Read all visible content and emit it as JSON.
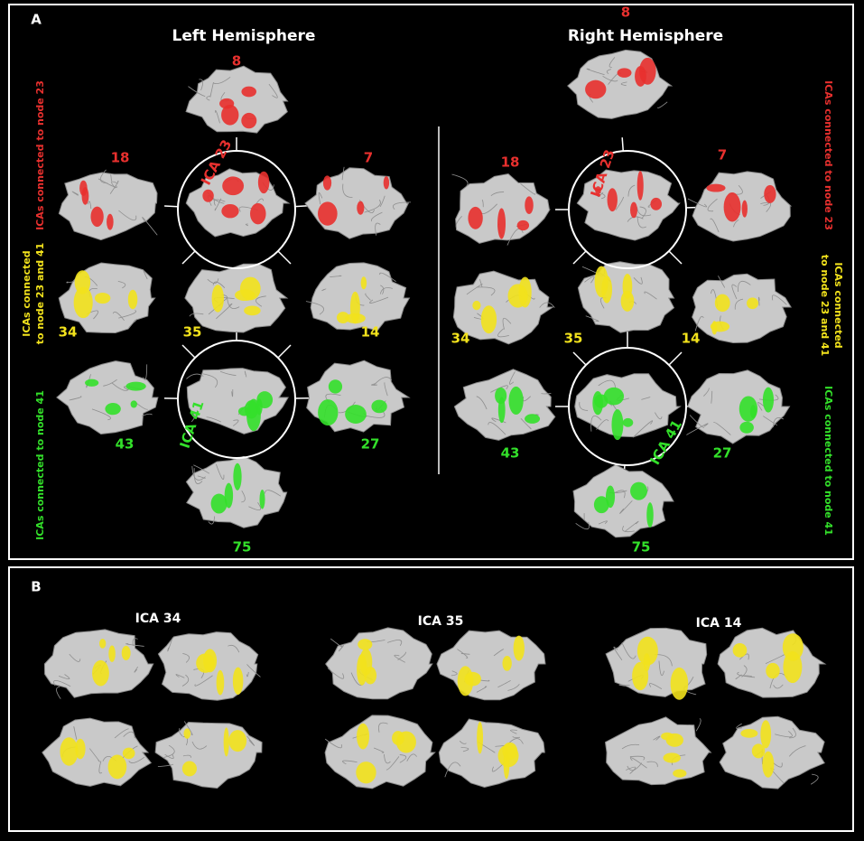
{
  "panel_a": {
    "label": "A",
    "side_labels": {
      "node_23": "ICAs connected to node 23",
      "node_23_41": [
        "ICAs connected",
        "to node 23 and 41"
      ],
      "node_41": "ICAs connected to node 41"
    },
    "hemispheres": [
      {
        "title": "Left Hemisphere",
        "hub_23": "ICA 23",
        "hub_41": "ICA 41",
        "red": [
          "8",
          "18",
          "7"
        ],
        "yellow": [
          "34",
          "35",
          "14"
        ],
        "green": [
          "43",
          "27",
          "75"
        ]
      },
      {
        "title": "Right Hemisphere",
        "hub_23": "ICA 23",
        "hub_41": "ICA 41",
        "red": [
          "8",
          "18",
          "7"
        ],
        "yellow": [
          "34",
          "35",
          "14"
        ],
        "green": [
          "43",
          "27",
          "75"
        ]
      }
    ]
  },
  "panel_b": {
    "label": "B",
    "groups": [
      "ICA 34",
      "ICA 35",
      "ICA 14"
    ]
  }
}
